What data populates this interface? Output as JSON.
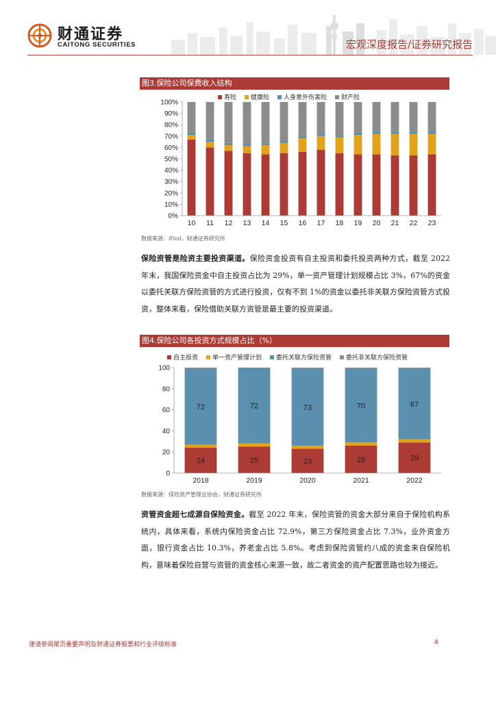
{
  "header": {
    "logo_cn": "财通证券",
    "logo_en": "CAITONG SECURITIES",
    "title": "宏观深度报告/证券研究报告"
  },
  "figure3": {
    "title": "图3.保险公司保费收入结构",
    "source": "数据来源：iFind，财通证券研究所"
  },
  "paragraph1": {
    "lead": "保险资管是险资主要投资渠道。",
    "body": "保险资金投资有自主投资和委托投资两种方式，截至 2022 年末，我国保险资金中自主投资占比为 29%，单一资产管理计划规模占比 3%，67%的资金以委托关联方保险资管的方式进行投资，仅有不到 1%的资金以委托非关联方保险资管方式投资，整体来看，保险借助关联方资管是最主要的投资渠道。"
  },
  "figure4": {
    "title": "图4.保险公司各投资方式规模占比（%）",
    "source": "数据来源：保险资产管理业协会，财通证券研究所"
  },
  "paragraph2": {
    "lead": "资管资金超七成源自保险资金。",
    "body": "截至 2022 年末，保险资管的资金大部分来自于保险机构系统内，具体来看，系统内保险资金占比 72.9%，第三方保险资金占比 7.3%，业外资金方面，银行资金占比 10.3%，养老金占比 5.8%。考虑到保险资管约八成的资金来自保险机构，意味着保险自营与资管的资金核心来源一致，故二者资金的资产配置思路也较为接近。"
  },
  "footer": {
    "note": "谨请参阅尾页重要声明及财通证券股票和行业评级标准",
    "page": "4"
  },
  "colors": {
    "brand_red": "#ad3b35",
    "gold": "#e3a21c",
    "steel_blue": "#5b8fae",
    "gray": "#8c8c8c"
  },
  "chart_data": [
    {
      "type": "bar",
      "stacked": true,
      "title": "图3.保险公司保费收入结构",
      "categories": [
        "10",
        "11",
        "12",
        "13",
        "14",
        "15",
        "16",
        "17",
        "18",
        "19",
        "20",
        "21",
        "22",
        "23"
      ],
      "series": [
        {
          "name": "寿险",
          "color": "#ad3b35",
          "values": [
            67,
            60,
            57,
            55,
            54,
            55,
            56,
            58,
            55,
            54,
            54,
            53,
            53,
            54
          ]
        },
        {
          "name": "健康险",
          "color": "#e3a21c",
          "values": [
            4,
            5,
            5,
            6,
            8,
            9,
            12,
            12,
            14,
            17,
            18,
            19,
            19,
            18
          ]
        },
        {
          "name": "人身意外伤害险",
          "color": "#5b8fae",
          "values": [
            2,
            2,
            2,
            2,
            2,
            2,
            2,
            2,
            2,
            2,
            2,
            2,
            2,
            2
          ]
        },
        {
          "name": "财产险",
          "color": "#8c8c8c",
          "values": [
            27,
            33,
            36,
            37,
            36,
            34,
            30,
            28,
            29,
            27,
            26,
            26,
            26,
            26
          ]
        }
      ],
      "yticks": [
        "0%",
        "10%",
        "20%",
        "30%",
        "40%",
        "50%",
        "60%",
        "70%",
        "80%",
        "90%",
        "100%"
      ],
      "ylim": [
        0,
        100
      ],
      "legend": "top"
    },
    {
      "type": "bar",
      "stacked": true,
      "title": "图4.保险公司各投资方式规模占比（%）",
      "categories": [
        "2018",
        "2019",
        "2020",
        "2021",
        "2022"
      ],
      "series": [
        {
          "name": "自主投资",
          "color": "#ad3b35",
          "values": [
            24,
            25,
            23,
            26,
            29
          ],
          "labels": [
            "24",
            "25",
            "23",
            "26",
            "29"
          ]
        },
        {
          "name": "单一资产管理计划",
          "color": "#e3a21c",
          "values": [
            3,
            3,
            3,
            3,
            3
          ]
        },
        {
          "name": "委托关联方保险资管",
          "color": "#5b8fae",
          "values": [
            72,
            72,
            73,
            70,
            67
          ],
          "labels": [
            "72",
            "72",
            "73",
            "70",
            "67"
          ]
        },
        {
          "name": "委托非关联方保险资管",
          "color": "#8c8c8c",
          "values": [
            1,
            0,
            1,
            1,
            1
          ]
        }
      ],
      "yticks": [
        "0",
        "20",
        "40",
        "60",
        "80",
        "100"
      ],
      "ylim": [
        0,
        100
      ],
      "legend": "top"
    }
  ]
}
